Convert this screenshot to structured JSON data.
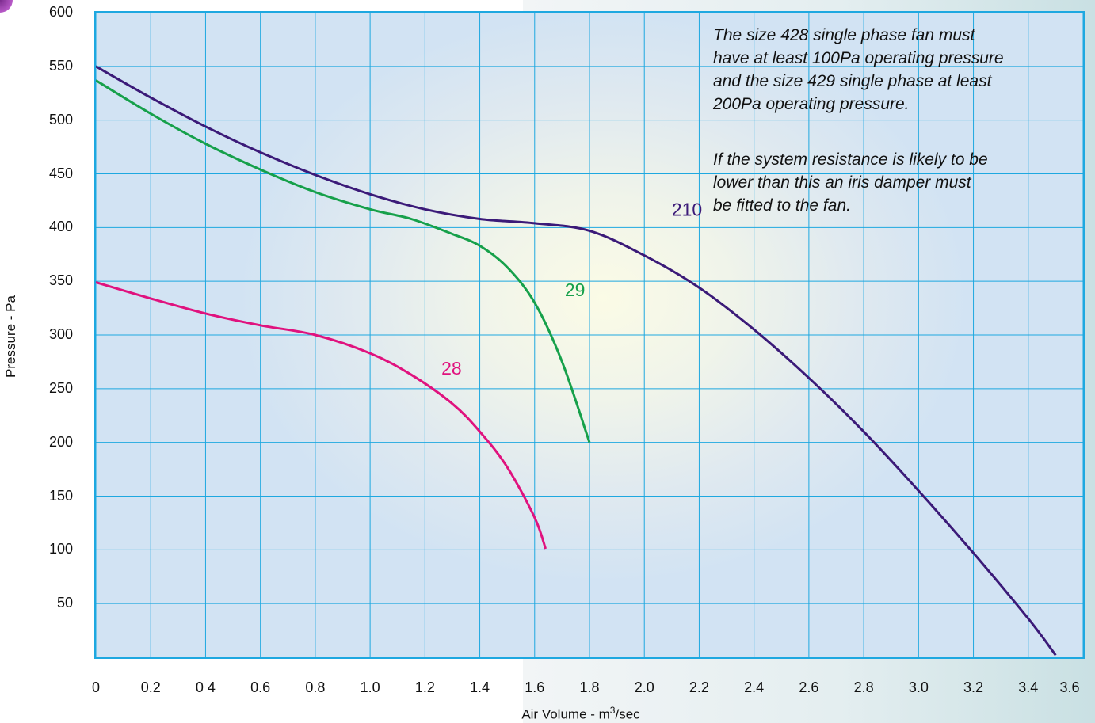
{
  "chart_data": {
    "type": "line",
    "xlabel": "Air Volume - m",
    "xlabel_sup": "3",
    "xlabel_tail": "/sec",
    "ylabel": "Pressure - Pa",
    "xlim": [
      0,
      3.6
    ],
    "ylim": [
      0,
      600
    ],
    "grid": true,
    "x_tick_values": [
      0,
      0.2,
      0.4,
      0.6,
      0.8,
      1.0,
      1.2,
      1.4,
      1.6,
      1.8,
      2.0,
      2.2,
      2.4,
      2.6,
      2.8,
      3.0,
      3.2,
      3.4,
      3.6
    ],
    "x_tick_labels": [
      "0",
      "0.2",
      "0 4",
      "0.6",
      "0.8",
      "1.0",
      "1.2",
      "1.4",
      "1.6",
      "1.8",
      "2.0",
      "2.2",
      "2.4",
      "2.6",
      "2.8",
      "3.0",
      "3.2",
      "3.4",
      "3.6"
    ],
    "y_tick_values": [
      50,
      100,
      150,
      200,
      250,
      300,
      350,
      400,
      450,
      500,
      550,
      600
    ],
    "y_tick_labels": [
      "50",
      "100",
      "150",
      "200",
      "250",
      "300",
      "350",
      "400",
      "450",
      "500",
      "550",
      "600"
    ],
    "series": [
      {
        "name": "210",
        "color": "#3b1a78",
        "label_at": [
          2.1,
          411
        ],
        "points": [
          [
            0,
            550
          ],
          [
            0.2,
            521
          ],
          [
            0.4,
            494
          ],
          [
            0.6,
            470
          ],
          [
            0.8,
            449
          ],
          [
            1.0,
            431
          ],
          [
            1.2,
            417
          ],
          [
            1.4,
            408
          ],
          [
            1.6,
            404
          ],
          [
            1.8,
            397
          ],
          [
            2.0,
            374
          ],
          [
            2.2,
            344
          ],
          [
            2.4,
            305
          ],
          [
            2.6,
            260
          ],
          [
            2.8,
            210
          ],
          [
            3.0,
            155
          ],
          [
            3.2,
            97
          ],
          [
            3.4,
            36
          ],
          [
            3.5,
            2
          ]
        ]
      },
      {
        "name": "29",
        "color": "#16a04a",
        "label_at": [
          1.71,
          336
        ],
        "points": [
          [
            0,
            537
          ],
          [
            0.2,
            506
          ],
          [
            0.4,
            478
          ],
          [
            0.6,
            454
          ],
          [
            0.8,
            433
          ],
          [
            1.0,
            417
          ],
          [
            1.15,
            408
          ],
          [
            1.3,
            394
          ],
          [
            1.4,
            383
          ],
          [
            1.5,
            363
          ],
          [
            1.6,
            330
          ],
          [
            1.7,
            275
          ],
          [
            1.8,
            200
          ]
        ]
      },
      {
        "name": "28",
        "color": "#e0127e",
        "label_at": [
          1.26,
          263
        ],
        "points": [
          [
            0,
            349
          ],
          [
            0.2,
            334
          ],
          [
            0.4,
            320
          ],
          [
            0.6,
            309
          ],
          [
            0.8,
            300
          ],
          [
            1.0,
            283
          ],
          [
            1.15,
            263
          ],
          [
            1.3,
            236
          ],
          [
            1.4,
            210
          ],
          [
            1.5,
            177
          ],
          [
            1.6,
            130
          ],
          [
            1.64,
            101
          ]
        ]
      }
    ]
  },
  "notes": [
    [
      "The size 428 single phase fan must",
      "have at least 100Pa operating pressure",
      "and the size 429 single phase at least",
      "200Pa operating pressure."
    ],
    [
      "If the system resistance is likely to be",
      "lower than this an iris damper must",
      "be fitted to the fan."
    ]
  ]
}
